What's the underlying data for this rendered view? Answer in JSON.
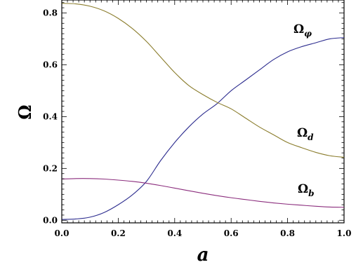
{
  "chart_data": {
    "type": "line",
    "xlabel": "a",
    "ylabel": "Ω",
    "xlim": [
      0,
      1
    ],
    "ylim": [
      -0.01,
      0.85
    ],
    "x_ticks": [
      "0.0",
      "0.2",
      "0.4",
      "0.6",
      "0.8",
      "1.0"
    ],
    "y_ticks": [
      "0.0",
      "0.2",
      "0.4",
      "0.6",
      "0.8"
    ],
    "grid": false,
    "series": [
      {
        "name": "Ω_φ",
        "label_main": "Ω",
        "label_sub": "φ",
        "color": "#2d2d8f",
        "x": [
          0.0,
          0.05,
          0.1,
          0.15,
          0.2,
          0.25,
          0.3,
          0.35,
          0.4,
          0.45,
          0.5,
          0.55,
          0.6,
          0.65,
          0.7,
          0.75,
          0.8,
          0.85,
          0.9,
          0.95,
          1.0
        ],
        "y": [
          0.003,
          0.005,
          0.012,
          0.03,
          0.06,
          0.098,
          0.15,
          0.23,
          0.3,
          0.36,
          0.41,
          0.45,
          0.5,
          0.54,
          0.58,
          0.62,
          0.65,
          0.67,
          0.685,
          0.7,
          0.705
        ]
      },
      {
        "name": "Ω_d",
        "label_main": "Ω",
        "label_sub": "d",
        "color": "#8b7d2d",
        "x": [
          0.0,
          0.05,
          0.1,
          0.15,
          0.2,
          0.25,
          0.3,
          0.35,
          0.4,
          0.45,
          0.5,
          0.55,
          0.6,
          0.65,
          0.7,
          0.75,
          0.8,
          0.85,
          0.9,
          0.95,
          1.0
        ],
        "y": [
          0.837,
          0.835,
          0.826,
          0.808,
          0.779,
          0.74,
          0.69,
          0.63,
          0.57,
          0.52,
          0.485,
          0.455,
          0.43,
          0.395,
          0.36,
          0.33,
          0.3,
          0.28,
          0.262,
          0.249,
          0.243
        ]
      },
      {
        "name": "Ω_b",
        "label_main": "Ω",
        "label_sub": "b",
        "color": "#8b2d7d",
        "x": [
          0.0,
          0.05,
          0.1,
          0.15,
          0.2,
          0.25,
          0.3,
          0.35,
          0.4,
          0.45,
          0.5,
          0.55,
          0.6,
          0.65,
          0.7,
          0.75,
          0.8,
          0.85,
          0.9,
          0.95,
          1.0
        ],
        "y": [
          0.159,
          0.161,
          0.161,
          0.159,
          0.155,
          0.15,
          0.143,
          0.134,
          0.124,
          0.114,
          0.104,
          0.095,
          0.087,
          0.08,
          0.073,
          0.067,
          0.062,
          0.058,
          0.054,
          0.051,
          0.05
        ]
      }
    ]
  }
}
